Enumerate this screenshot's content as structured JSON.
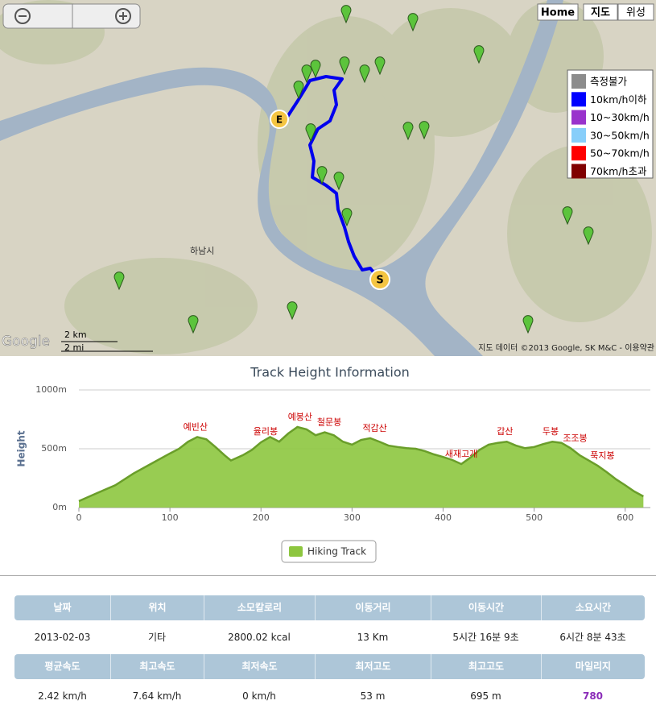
{
  "map": {
    "buttons": [
      "Home",
      "지도",
      "위성"
    ],
    "legend": [
      {
        "label": "측정불가",
        "color": "#8c8c8c"
      },
      {
        "label": "10km/h이하",
        "color": "#0000ff"
      },
      {
        "label": "10~30km/h",
        "color": "#9933cc"
      },
      {
        "label": "30~50km/h",
        "color": "#87cefa"
      },
      {
        "label": "50~70km/h",
        "color": "#ff0000"
      },
      {
        "label": "70km/h초과",
        "color": "#800000"
      }
    ],
    "start_marker": "S",
    "end_marker": "E",
    "city": "하남시",
    "scale": [
      "2 km",
      "2 mi"
    ],
    "logo": "Google",
    "attribution": "지도 데이터 ©2013 Google, SK M&C - 이용약관"
  },
  "chart_data": {
    "type": "area",
    "title": "Track Height Information",
    "y_label": "Height",
    "xlim": [
      0,
      625
    ],
    "ylim": [
      0,
      1000
    ],
    "xticks": [
      0,
      100,
      200,
      300,
      400,
      500,
      600
    ],
    "yticks": [
      {
        "value": 0,
        "label": "0m"
      },
      {
        "value": 500,
        "label": "500m"
      },
      {
        "value": 1000,
        "label": "1000m"
      }
    ],
    "x": [
      0,
      20,
      40,
      60,
      80,
      100,
      110,
      120,
      130,
      140,
      150,
      160,
      167,
      180,
      190,
      200,
      210,
      220,
      230,
      240,
      250,
      260,
      270,
      280,
      290,
      300,
      310,
      320,
      330,
      340,
      350,
      360,
      370,
      380,
      390,
      400,
      410,
      420,
      430,
      440,
      450,
      460,
      470,
      480,
      490,
      500,
      510,
      520,
      530,
      540,
      550,
      560,
      570,
      580,
      590,
      600,
      610,
      620
    ],
    "series": [
      {
        "name": "Hiking Track",
        "color": "#8dc63f",
        "values": [
          55,
          123,
          190,
          290,
          375,
          460,
          500,
          560,
          600,
          580,
          515,
          445,
          400,
          445,
          490,
          555,
          600,
          560,
          630,
          685,
          665,
          615,
          640,
          615,
          560,
          535,
          575,
          590,
          560,
          527,
          515,
          505,
          500,
          480,
          452,
          430,
          405,
          370,
          425,
          490,
          535,
          550,
          560,
          527,
          505,
          515,
          540,
          560,
          550,
          505,
          445,
          400,
          355,
          300,
          240,
          190,
          137,
          95
        ]
      }
    ],
    "annotations": [
      {
        "text": "예빈산",
        "x": 128,
        "y": 600
      },
      {
        "text": "율리봉",
        "x": 205,
        "y": 560
      },
      {
        "text": "예봉산",
        "x": 243,
        "y": 685
      },
      {
        "text": "철문봉",
        "x": 275,
        "y": 640
      },
      {
        "text": "적갑산",
        "x": 325,
        "y": 590
      },
      {
        "text": "새재고개",
        "x": 420,
        "y": 370
      },
      {
        "text": "갑산",
        "x": 468,
        "y": 560
      },
      {
        "text": "두봉",
        "x": 518,
        "y": 560
      },
      {
        "text": "조조봉",
        "x": 545,
        "y": 505
      },
      {
        "text": "푹지봉",
        "x": 575,
        "y": 355
      }
    ]
  },
  "table": {
    "rows": [
      {
        "headers": [
          "날짜",
          "위치",
          "소모칼로리",
          "이동거리",
          "이동시간",
          "소요시간"
        ],
        "values": [
          "2013-02-03",
          "기타",
          "2800.02 kcal",
          "13 Km",
          "5시간 16분 9초",
          "6시간 8분 43초"
        ]
      },
      {
        "headers": [
          "평균속도",
          "최고속도",
          "최저속도",
          "최저고도",
          "최고고도",
          "마일리지"
        ],
        "values": [
          "2.42 km/h",
          "7.64 km/h",
          "0 km/h",
          "53 m",
          "695 m",
          "780"
        ]
      }
    ]
  }
}
